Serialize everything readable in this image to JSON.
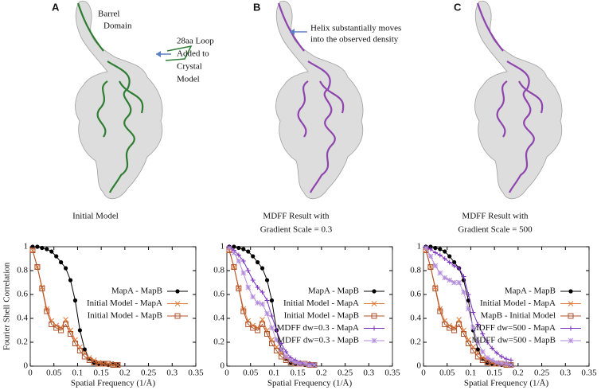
{
  "panels": [
    {
      "letter": "A",
      "caption": [
        "Initial Model"
      ],
      "annotations": [
        [
          "Barrel",
          "Domain"
        ],
        [
          "28aa Loop",
          "Added to",
          "Crystal",
          "Model"
        ]
      ]
    },
    {
      "letter": "B",
      "caption": [
        "MDFF Result with",
        "Gradient Scale = 0.3"
      ],
      "annotations": [
        [
          "Helix substantially moves",
          "into the observed density"
        ]
      ]
    },
    {
      "letter": "C",
      "caption": [
        "MDFF Result with",
        "Gradient Scale = 500"
      ],
      "annotations": []
    }
  ],
  "chart_data": [
    {
      "type": "line",
      "xlabel": "Spatial Frequency (1/Å)",
      "ylabel": "Fourier Shell Correlation",
      "xlim": [
        0,
        0.35
      ],
      "xticks": [
        0,
        0.05,
        0.1,
        0.15,
        0.2,
        0.25,
        0.3,
        0.35
      ],
      "ylim": [
        0,
        1
      ],
      "yticks": [
        0,
        0.2,
        0.4,
        0.6,
        0.8,
        1
      ],
      "x": [
        0.005,
        0.015,
        0.025,
        0.035,
        0.045,
        0.055,
        0.065,
        0.075,
        0.085,
        0.095,
        0.105,
        0.115,
        0.125,
        0.135,
        0.145,
        0.155,
        0.165,
        0.175,
        0.185
      ],
      "series": [
        {
          "name": "MapA - MapB",
          "color": "#000000",
          "marker": "circle",
          "values": [
            1,
            1,
            0.99,
            0.98,
            0.96,
            0.92,
            0.87,
            0.82,
            0.72,
            0.55,
            0.3,
            0.14,
            0.06,
            0.03,
            0.02,
            0.02,
            0.01,
            0.02,
            0.01
          ]
        },
        {
          "name": "Initial Model - MapA",
          "color": "#e07b39",
          "marker": "x",
          "values": [
            0.97,
            0.83,
            0.66,
            0.48,
            0.38,
            0.34,
            0.32,
            0.39,
            0.3,
            0.22,
            0.16,
            0.11,
            0.07,
            0.05,
            0.03,
            0.02,
            0.02,
            0.01,
            0.01
          ]
        },
        {
          "name": "Initial Model - MapB",
          "color": "#b0522a",
          "marker": "square",
          "values": [
            0.97,
            0.83,
            0.65,
            0.46,
            0.35,
            0.32,
            0.3,
            0.35,
            0.27,
            0.19,
            0.13,
            0.08,
            0.05,
            0.03,
            0.02,
            0.02,
            0.02,
            0.01,
            0.01
          ]
        }
      ]
    },
    {
      "type": "line",
      "xlabel": "Spatial Frequency (1/Å)",
      "xlim": [
        0,
        0.35
      ],
      "xticks": [
        0,
        0.05,
        0.1,
        0.15,
        0.2,
        0.25,
        0.3,
        0.35
      ],
      "ylim": [
        0,
        1
      ],
      "yticks": [
        0,
        0.2,
        0.4,
        0.6,
        0.8,
        1
      ],
      "x": [
        0.005,
        0.015,
        0.025,
        0.035,
        0.045,
        0.055,
        0.065,
        0.075,
        0.085,
        0.095,
        0.105,
        0.115,
        0.125,
        0.135,
        0.145,
        0.155,
        0.165,
        0.175,
        0.185
      ],
      "series": [
        {
          "name": "MapA - MapB",
          "color": "#000000",
          "marker": "circle",
          "values": [
            1,
            1,
            0.99,
            0.98,
            0.96,
            0.92,
            0.87,
            0.82,
            0.72,
            0.55,
            0.3,
            0.14,
            0.06,
            0.03,
            0.02,
            0.02,
            0.01,
            0.02,
            0.01
          ]
        },
        {
          "name": "Initial Model - MapA",
          "color": "#e07b39",
          "marker": "x",
          "values": [
            0.97,
            0.83,
            0.66,
            0.48,
            0.38,
            0.34,
            0.32,
            0.39,
            0.3,
            0.22,
            0.16,
            0.11,
            0.07,
            0.05,
            0.03,
            0.02,
            0.02,
            0.01,
            0.01
          ]
        },
        {
          "name": "Initial Model - MapB",
          "color": "#b0522a",
          "marker": "square",
          "values": [
            0.97,
            0.83,
            0.65,
            0.46,
            0.35,
            0.32,
            0.3,
            0.35,
            0.27,
            0.19,
            0.13,
            0.08,
            0.05,
            0.03,
            0.02,
            0.02,
            0.02,
            0.01,
            0.01
          ]
        },
        {
          "name": "MDFF dw=0.3 - MapA",
          "color": "#7b2fbf",
          "marker": "plus",
          "values": [
            1,
            0.97,
            0.93,
            0.88,
            0.8,
            0.72,
            0.66,
            0.62,
            0.55,
            0.42,
            0.3,
            0.19,
            0.12,
            0.07,
            0.05,
            0.03,
            0.02,
            0.02,
            0.01
          ]
        },
        {
          "name": "MDFF dw=0.3 - MapB",
          "color": "#b38ddb",
          "marker": "star",
          "values": [
            0.99,
            0.95,
            0.88,
            0.78,
            0.66,
            0.58,
            0.53,
            0.52,
            0.44,
            0.32,
            0.22,
            0.14,
            0.08,
            0.05,
            0.03,
            0.02,
            0.02,
            0.01,
            0.01
          ]
        }
      ]
    },
    {
      "type": "line",
      "xlabel": "Spatial Frequency (1/Å)",
      "xlim": [
        0,
        0.35
      ],
      "xticks": [
        0,
        0.05,
        0.1,
        0.15,
        0.2,
        0.25,
        0.3,
        0.35
      ],
      "ylim": [
        0,
        1
      ],
      "yticks": [
        0,
        0.2,
        0.4,
        0.6,
        0.8,
        1
      ],
      "x": [
        0.005,
        0.015,
        0.025,
        0.035,
        0.045,
        0.055,
        0.065,
        0.075,
        0.085,
        0.095,
        0.105,
        0.115,
        0.125,
        0.135,
        0.145,
        0.155,
        0.165,
        0.175,
        0.185
      ],
      "series": [
        {
          "name": "MapA - MapB",
          "color": "#000000",
          "marker": "circle",
          "values": [
            1,
            1,
            0.99,
            0.98,
            0.96,
            0.92,
            0.87,
            0.82,
            0.72,
            0.55,
            0.3,
            0.14,
            0.06,
            0.03,
            0.02,
            0.02,
            0.01,
            0.02,
            0.01
          ]
        },
        {
          "name": "Initial Model - MapA",
          "color": "#e07b39",
          "marker": "x",
          "values": [
            0.97,
            0.83,
            0.66,
            0.48,
            0.38,
            0.34,
            0.32,
            0.39,
            0.3,
            0.22,
            0.16,
            0.11,
            0.07,
            0.05,
            0.03,
            0.02,
            0.02,
            0.01,
            0.01
          ]
        },
        {
          "name": "MapB - Initial Model",
          "color": "#b0522a",
          "marker": "square",
          "values": [
            0.97,
            0.83,
            0.65,
            0.46,
            0.35,
            0.32,
            0.3,
            0.35,
            0.27,
            0.19,
            0.13,
            0.08,
            0.05,
            0.03,
            0.02,
            0.02,
            0.02,
            0.01,
            0.01
          ]
        },
        {
          "name": "MDFF dw=500 - MapA",
          "color": "#7b2fbf",
          "marker": "plus",
          "values": [
            1,
            0.98,
            0.95,
            0.93,
            0.9,
            0.87,
            0.84,
            0.82,
            0.75,
            0.6,
            0.45,
            0.35,
            0.27,
            0.2,
            0.15,
            0.11,
            0.08,
            0.06,
            0.05
          ]
        },
        {
          "name": "MDFF dw=500 - MapB",
          "color": "#b38ddb",
          "marker": "star",
          "values": [
            0.99,
            0.92,
            0.84,
            0.78,
            0.74,
            0.72,
            0.7,
            0.7,
            0.62,
            0.48,
            0.32,
            0.2,
            0.12,
            0.07,
            0.05,
            0.03,
            0.02,
            0.02,
            0.01
          ]
        }
      ]
    }
  ]
}
